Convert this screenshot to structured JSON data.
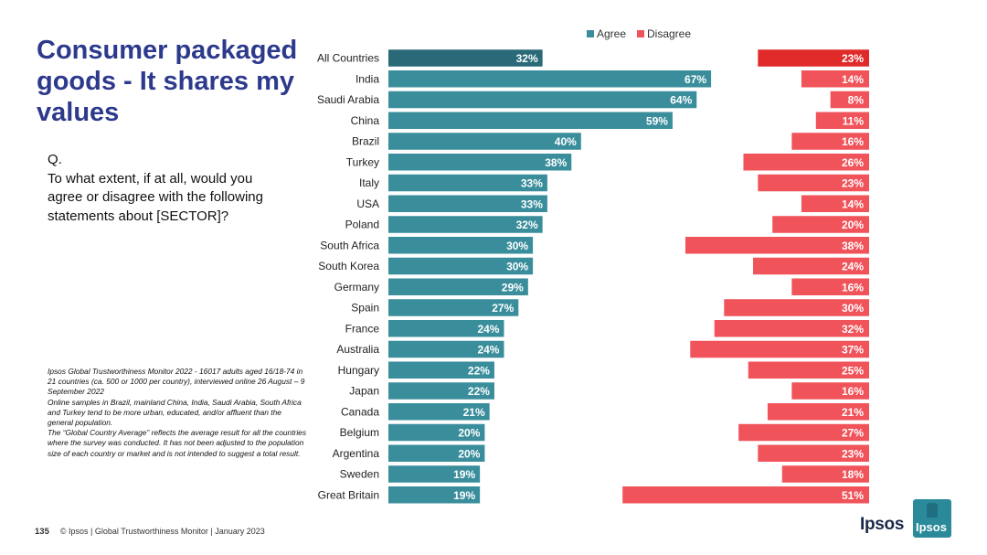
{
  "title": "Consumer packaged goods - It shares my values",
  "question": {
    "label": "Q.",
    "text": "To what extent, if at all, would you agree or disagree with the following statements about [SECTOR]?"
  },
  "notes": [
    "Ipsos Global Trustworthiness Monitor 2022 - 16017 adults aged 16/18-74 in 21 countries (ca. 500 or 1000 per country), interviewed online 26 August – 9 September 2022",
    "Online samples in Brazil, mainland China, India, Saudi Arabia, South Africa and Turkey tend to be more urban, educated, and/or affluent than the general population.",
    "The “Global Country Average” reflects the average result for all the countries where the survey was conducted. It has not been adjusted to the population size of each country or market and is not intended to suggest a total result."
  ],
  "footer": {
    "page_number": "135",
    "text": "© Ipsos | Global Trustworthiness Monitor | January 2023"
  },
  "logo": {
    "wordmark": "Ipsos",
    "badge": "Ipsos"
  },
  "colors": {
    "agree": "#3a8e9c",
    "agree_highlight": "#2a6a78",
    "disagree": "#f0535a",
    "disagree_highlight": "#e02a2a",
    "title": "#2d3a8c"
  },
  "chart_data": {
    "type": "bar",
    "orientation": "horizontal-diverging",
    "legend": [
      "Agree",
      "Disagree"
    ],
    "categories": [
      "All Countries",
      "India",
      "Saudi Arabia",
      "China",
      "Brazil",
      "Turkey",
      "Italy",
      "USA",
      "Poland",
      "South Africa",
      "South Korea",
      "Germany",
      "Spain",
      "France",
      "Australia",
      "Hungary",
      "Japan",
      "Canada",
      "Belgium",
      "Argentina",
      "Sweden",
      "Great Britain"
    ],
    "series": [
      {
        "name": "Agree",
        "values": [
          32,
          67,
          64,
          59,
          40,
          38,
          33,
          33,
          32,
          30,
          30,
          29,
          27,
          24,
          24,
          22,
          22,
          21,
          20,
          20,
          19,
          19
        ]
      },
      {
        "name": "Disagree",
        "values": [
          23,
          14,
          8,
          11,
          16,
          26,
          23,
          14,
          20,
          38,
          24,
          16,
          30,
          32,
          37,
          25,
          16,
          21,
          27,
          23,
          18,
          51
        ]
      }
    ],
    "value_suffix": "%",
    "highlight_index": 0
  }
}
